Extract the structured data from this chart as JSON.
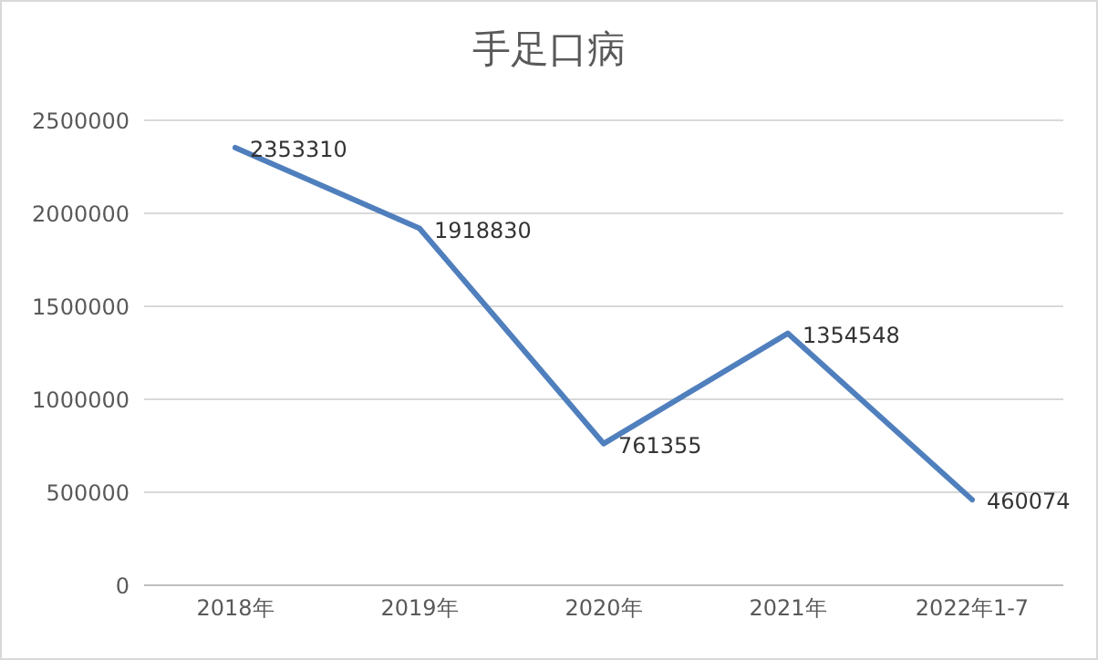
{
  "chart_data": {
    "type": "line",
    "title": "手足口病",
    "categories": [
      "2018年",
      "2019年",
      "2020年",
      "2021年",
      "2022年1-7"
    ],
    "series": [
      {
        "color": "#4f7fbd",
        "values": [
          2353310,
          1918830,
          761355,
          1354548,
          460074
        ]
      }
    ],
    "ylim": [
      0,
      2500000
    ],
    "yticks": [
      0,
      500000,
      1000000,
      1500000,
      2000000,
      2500000
    ],
    "grid": "y",
    "data_labels": true,
    "marker": "none",
    "line_style": "solid",
    "legend": false
  }
}
